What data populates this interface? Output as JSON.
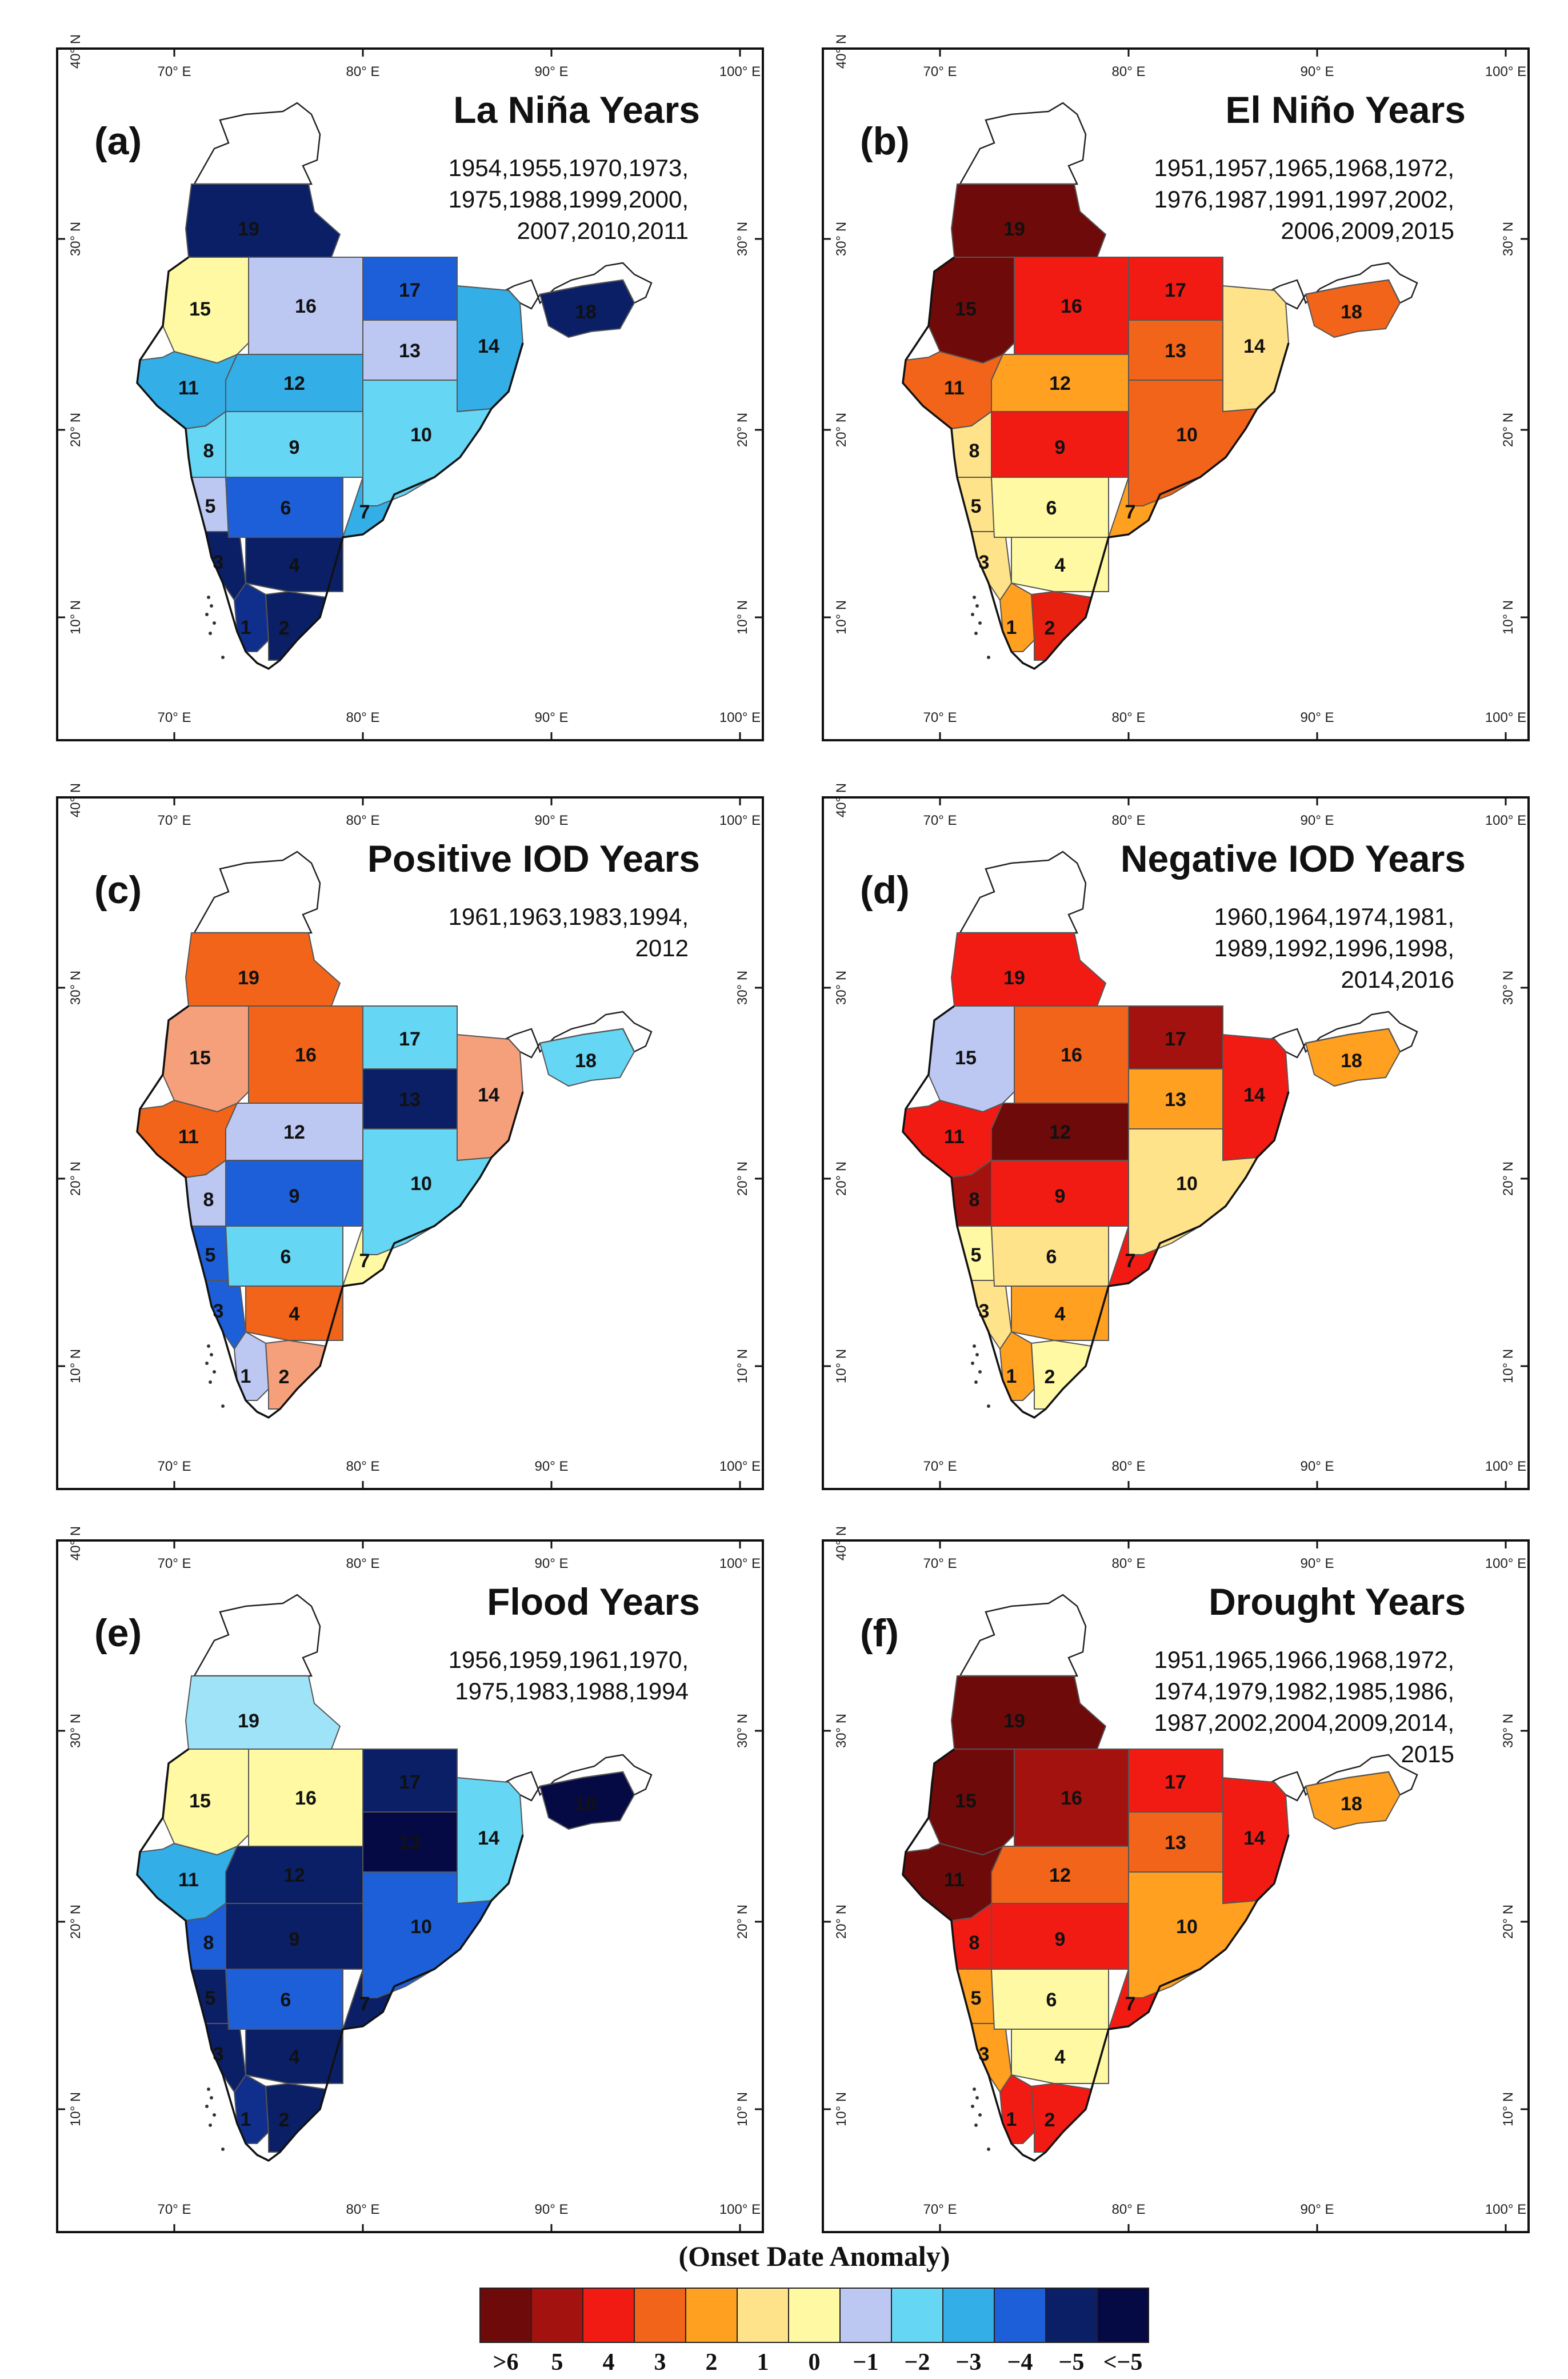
{
  "axes": {
    "lon_labels": [
      "70° E",
      "80° E",
      "90° E",
      "100° E"
    ],
    "lat_labels": [
      "10° N",
      "20° N",
      "30° N",
      "40° N"
    ]
  },
  "panels": [
    {
      "id": "a",
      "letter": "(a)",
      "title": "La Niña Years",
      "years": [
        "1954,1955,1970,1973,",
        "1975,1988,1999,2000,",
        "2007,2010,2011"
      ],
      "colors": {
        "1": "#102E8C",
        "2": "#0A1F66",
        "3": "#0A1F66",
        "4": "#0A1F66",
        "5": "#BCC8F2",
        "6": "#1D5FD9",
        "7": "#33AEE6",
        "8": "#66D6F5",
        "9": "#66D6F5",
        "10": "#66D6F5",
        "11": "#33AEE6",
        "12": "#33AEE6",
        "13": "#BCC8F2",
        "14": "#33AEE6",
        "15": "#FFF9A3",
        "16": "#BCC8F2",
        "17": "#1D5FD9",
        "18": "#0A1F66",
        "19": "#0A1F66"
      }
    },
    {
      "id": "b",
      "letter": "(b)",
      "title": "El Niño Years",
      "years": [
        "1951,1957,1965,1968,1972,",
        "1976,1987,1991,1997,2002,",
        "2006,2009,2015"
      ],
      "colors": {
        "1": "#FFA020",
        "2": "#E82010",
        "3": "#FFE38A",
        "4": "#FFF9A3",
        "5": "#FFE38A",
        "6": "#FFF9A3",
        "7": "#FFA020",
        "8": "#FFE38A",
        "9": "#F21B14",
        "10": "#F26419",
        "11": "#F26419",
        "12": "#FFA020",
        "13": "#F26419",
        "14": "#FFE38A",
        "15": "#6E0A0A",
        "16": "#F21B14",
        "17": "#F21B14",
        "18": "#F26419",
        "19": "#6E0A0A"
      }
    },
    {
      "id": "c",
      "letter": "(c)",
      "title": "Positive IOD Years",
      "years": [
        "1961,1963,1983,1994,",
        "2012"
      ],
      "colors": {
        "1": "#BCC8F2",
        "2": "#F5A07A",
        "3": "#1D5FD9",
        "4": "#F26419",
        "5": "#1D5FD9",
        "6": "#66D6F5",
        "7": "#FFF9A3",
        "8": "#BCC8F2",
        "9": "#1D5FD9",
        "10": "#66D6F5",
        "11": "#F26419",
        "12": "#BCC8F2",
        "13": "#0A1F66",
        "14": "#F5A07A",
        "15": "#F5A07A",
        "16": "#F26419",
        "17": "#66D6F5",
        "18": "#66D6F5",
        "19": "#F26419"
      }
    },
    {
      "id": "d",
      "letter": "(d)",
      "title": "Negative IOD Years",
      "years": [
        "1960,1964,1974,1981,",
        "1989,1992,1996,1998,",
        "2014,2016"
      ],
      "colors": {
        "1": "#FFA020",
        "2": "#FFF9A3",
        "3": "#FFE38A",
        "4": "#FFA020",
        "5": "#FFF9A3",
        "6": "#FFE38A",
        "7": "#F21B14",
        "8": "#A3120E",
        "9": "#F21B14",
        "10": "#FFE38A",
        "11": "#F21B14",
        "12": "#6E0A0A",
        "13": "#FFA020",
        "14": "#F21B14",
        "15": "#BCC8F2",
        "16": "#F26419",
        "17": "#A3120E",
        "18": "#FFA020",
        "19": "#F21B14"
      }
    },
    {
      "id": "e",
      "letter": "(e)",
      "title": "Flood Years",
      "years": [
        "1956,1959,1961,1970,",
        "1975,1983,1988,1994"
      ],
      "colors": {
        "1": "#102E8C",
        "2": "#0A1F66",
        "3": "#0A1F66",
        "4": "#0A1F66",
        "5": "#0A1F66",
        "6": "#1D5FD9",
        "7": "#0A1F66",
        "8": "#1D5FD9",
        "9": "#0A1F66",
        "10": "#1D5FD9",
        "11": "#33AEE6",
        "12": "#0A1F66",
        "13": "#050A45",
        "14": "#66D6F5",
        "15": "#FFF9A3",
        "16": "#FFF9A3",
        "17": "#0A1F66",
        "18": "#050A45",
        "19": "#9FE3F8"
      }
    },
    {
      "id": "f",
      "letter": "(f)",
      "title": "Drought Years",
      "years": [
        "1951,1965,1966,1968,1972,",
        "1974,1979,1982,1985,1986,",
        "1987,2002,2004,2009,2014,",
        "2015"
      ],
      "colors": {
        "1": "#F21B14",
        "2": "#F21B14",
        "3": "#FFA020",
        "4": "#FFF9A3",
        "5": "#FFA020",
        "6": "#FFF9A3",
        "7": "#F21B14",
        "8": "#F21B14",
        "9": "#F21B14",
        "10": "#FFA020",
        "11": "#6E0A0A",
        "12": "#F26419",
        "13": "#F26419",
        "14": "#F21B14",
        "15": "#6E0A0A",
        "16": "#A3120E",
        "17": "#F21B14",
        "18": "#FFA020",
        "19": "#6E0A0A"
      }
    }
  ],
  "legend": {
    "title": "(Onset Date Anomaly)",
    "items": [
      {
        "label": ">6",
        "color": "#6E0A0A"
      },
      {
        "label": "5",
        "color": "#A3120E"
      },
      {
        "label": "4",
        "color": "#F21B14"
      },
      {
        "label": "3",
        "color": "#F26419"
      },
      {
        "label": "2",
        "color": "#FFA020"
      },
      {
        "label": "1",
        "color": "#FFE38A"
      },
      {
        "label": "0",
        "color": "#FFF9A3"
      },
      {
        "label": "−1",
        "color": "#BCC8F2"
      },
      {
        "label": "−2",
        "color": "#66D6F5"
      },
      {
        "label": "−3",
        "color": "#33AEE6"
      },
      {
        "label": "−4",
        "color": "#1D5FD9"
      },
      {
        "label": "−5",
        "color": "#0A1F66"
      },
      {
        "label": "<−5",
        "color": "#050A45"
      }
    ]
  }
}
